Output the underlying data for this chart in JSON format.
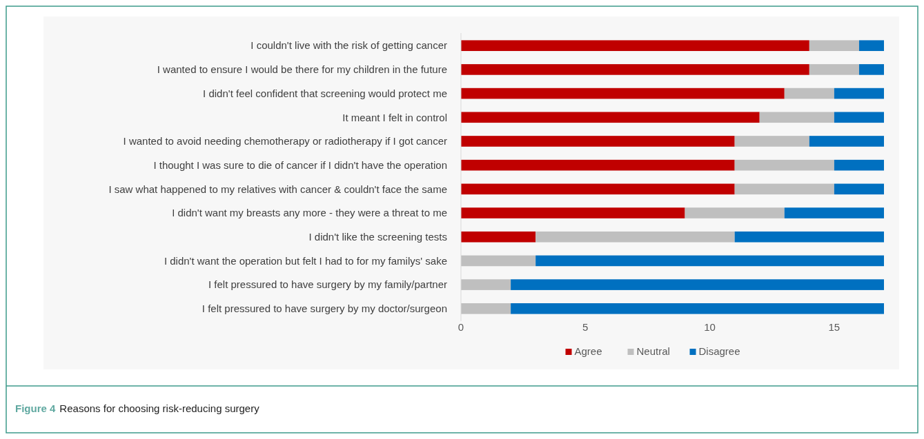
{
  "chart_data": {
    "type": "bar",
    "orientation": "horizontal",
    "stacked": true,
    "categories": [
      "I couldn't live with the risk of getting cancer",
      "I wanted to ensure I would be there for my children in the future",
      "I didn't feel confident that screening would protect me",
      "It meant I felt in control",
      "I wanted to avoid needing chemotherapy or radiotherapy if I got cancer",
      "I thought I was sure to die of cancer if I didn't have the operation",
      "I saw what happened to my relatives with cancer & couldn't face the same",
      "I didn't want my breasts any more - they were a threat to me",
      "I didn't like the screening tests",
      "I didn't want the operation but felt I had to for my familys' sake",
      "I felt pressured to have surgery by my family/partner",
      "I felt pressured to have surgery by my doctor/surgeon"
    ],
    "series": [
      {
        "name": "Agree",
        "color": "#c00000",
        "values": [
          14,
          14,
          13,
          12,
          11,
          11,
          11,
          9,
          3,
          0,
          0,
          0
        ]
      },
      {
        "name": "Neutral",
        "color": "#bfbfbf",
        "values": [
          2,
          2,
          2,
          3,
          3,
          4,
          4,
          4,
          8,
          3,
          2,
          2
        ]
      },
      {
        "name": "Disagree",
        "color": "#0070c0",
        "values": [
          1,
          1,
          2,
          2,
          3,
          2,
          2,
          4,
          6,
          14,
          15,
          15
        ]
      }
    ],
    "xlim": [
      0,
      17
    ],
    "xticks": [
      0,
      5,
      10,
      15
    ],
    "grid": false,
    "legend": "bottom",
    "annotations": [
      "Figure 4",
      "Reasons for choosing risk-reducing surgery"
    ]
  }
}
